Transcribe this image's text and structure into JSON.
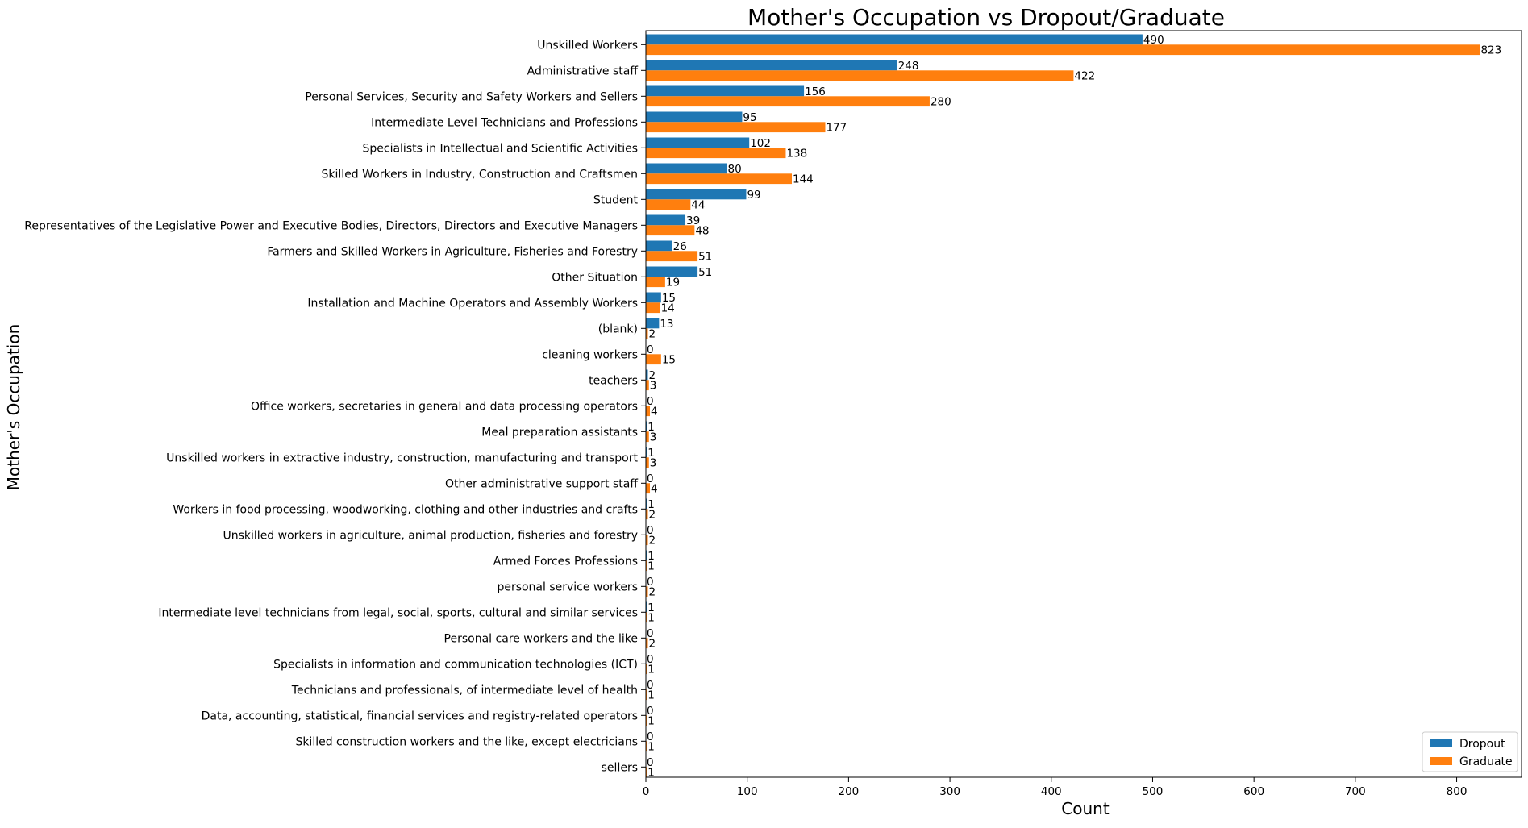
{
  "chart_data": {
    "type": "bar",
    "orientation": "horizontal",
    "title": "Mother's Occupation vs Dropout/Graduate",
    "xlabel": "Count",
    "ylabel": "Mother's Occupation",
    "xlim": [
      0,
      864
    ],
    "xticks": [
      0,
      100,
      200,
      300,
      400,
      500,
      600,
      700,
      800
    ],
    "grid": false,
    "legend_position": "lower-right",
    "categories": [
      "Unskilled Workers",
      "Administrative staff",
      "Personal Services, Security and Safety Workers and Sellers",
      "Intermediate Level Technicians and Professions",
      "Specialists in Intellectual and Scientific Activities",
      "Skilled Workers in Industry, Construction and Craftsmen",
      "Student",
      "Representatives of the Legislative Power and Executive Bodies, Directors, Directors and Executive Managers",
      "Farmers and Skilled Workers in Agriculture, Fisheries and Forestry",
      "Other Situation",
      "Installation and Machine Operators and Assembly Workers",
      "(blank)",
      "cleaning workers",
      "teachers",
      "Office workers, secretaries in general and data processing operators",
      "Meal preparation assistants",
      "Unskilled workers in extractive industry, construction, manufacturing and transport",
      "Other administrative support staff",
      "Workers in food processing, woodworking, clothing and other industries and crafts",
      "Unskilled workers in agriculture, animal production, fisheries and forestry",
      "Armed Forces Professions",
      "personal service workers",
      "Intermediate level technicians from legal, social, sports, cultural and similar services",
      "Personal care workers and the like",
      "Specialists in information and communication technologies (ICT)",
      "Technicians and professionals, of intermediate level of health",
      "Data, accounting, statistical, financial services and registry-related operators",
      "Skilled construction workers and the like, except electricians",
      "sellers"
    ],
    "series": [
      {
        "name": "Dropout",
        "color": "#1f77b4",
        "values": [
          490,
          248,
          156,
          95,
          102,
          80,
          99,
          39,
          26,
          51,
          15,
          13,
          0,
          2,
          0,
          1,
          1,
          0,
          1,
          0,
          1,
          0,
          1,
          0,
          0,
          0,
          0,
          0,
          0
        ]
      },
      {
        "name": "Graduate",
        "color": "#ff7f0e",
        "values": [
          823,
          422,
          280,
          177,
          138,
          144,
          44,
          48,
          51,
          19,
          14,
          2,
          15,
          3,
          4,
          3,
          3,
          4,
          2,
          2,
          1,
          2,
          1,
          2,
          1,
          1,
          1,
          1,
          1
        ]
      }
    ]
  }
}
